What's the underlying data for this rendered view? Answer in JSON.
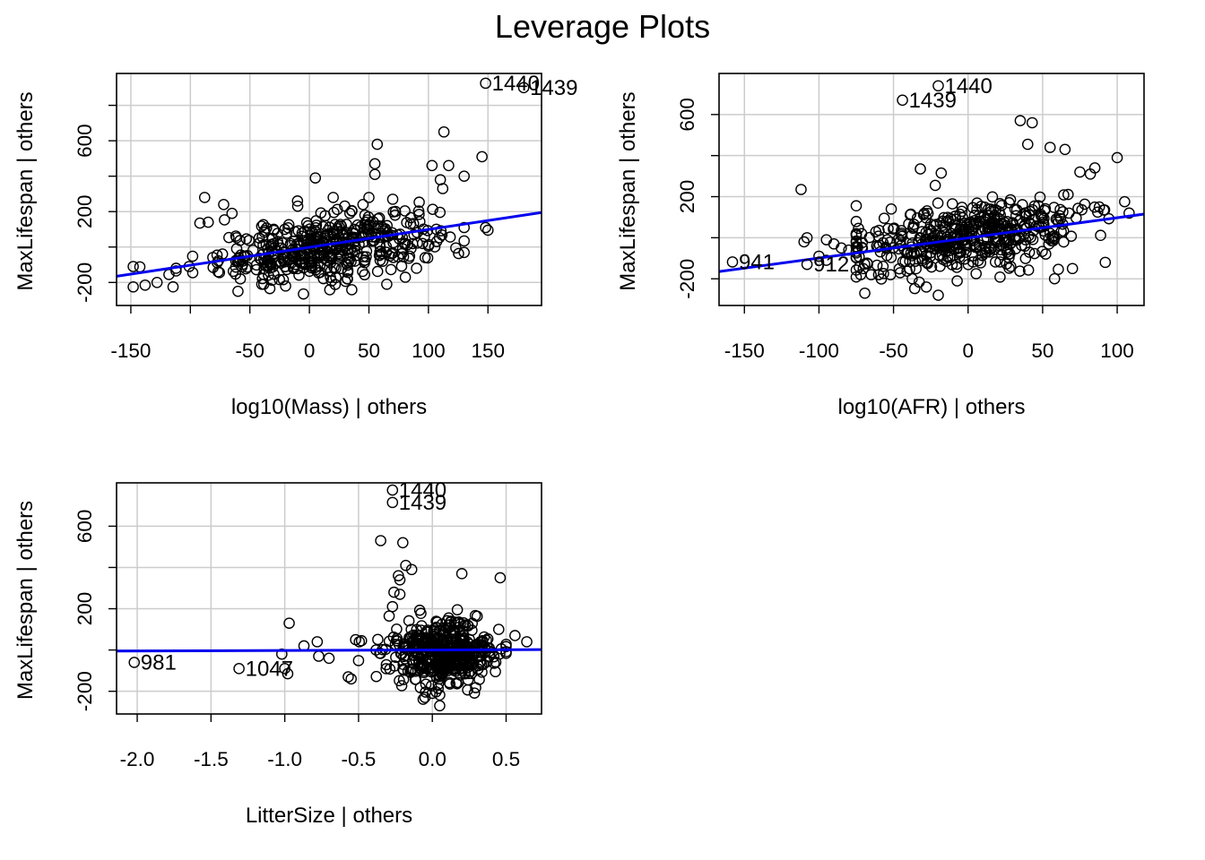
{
  "title": "Leverage Plots",
  "colors": {
    "points": "#000000",
    "fit_line": "#0000ee",
    "grid": "#cccccc"
  },
  "chart_data": [
    {
      "type": "scatter",
      "xlabel": "log10(Mass) | others",
      "ylabel": "MaxLifespan  | others",
      "xlim": [
        -162,
        195
      ],
      "ylim": [
        -330,
        980
      ],
      "xticks": [
        -150,
        -100,
        -50,
        0,
        50,
        100,
        150
      ],
      "xtick_labels": [
        "-150",
        "",
        "-50",
        "0",
        "50",
        "100",
        "150"
      ],
      "yticks": [
        -200,
        0,
        200,
        400,
        600,
        800
      ],
      "ytick_labels": [
        "-200",
        "",
        "200",
        "",
        "600",
        ""
      ],
      "grid": true,
      "fit_line": {
        "x": [
          -162,
          195
        ],
        "y": [
          -165,
          195
        ]
      },
      "labeled_points": [
        {
          "x": 180,
          "y": 900,
          "label": "1439"
        },
        {
          "x": 148,
          "y": 925,
          "label": "1440"
        }
      ],
      "cloud": {
        "xc": 15,
        "yc": 0,
        "sx": 45,
        "sy": 85,
        "n": 440,
        "xmin": -150,
        "xmax": 130,
        "ymin": -280,
        "ymax": 600
      },
      "extra_points": [
        [
          -148,
          -110
        ],
        [
          -148,
          -225
        ],
        [
          -138,
          -215
        ],
        [
          -128,
          -200
        ],
        [
          -118,
          -155
        ],
        [
          -112,
          -135
        ],
        [
          -112,
          -120
        ],
        [
          -101,
          -110
        ],
        [
          -98,
          -145
        ],
        [
          -92,
          135
        ],
        [
          -88,
          280
        ],
        [
          -85,
          140
        ],
        [
          -72,
          240
        ],
        [
          -65,
          190
        ],
        [
          -60,
          -250
        ],
        [
          -58,
          -180
        ],
        [
          -40,
          -210
        ],
        [
          -30,
          100
        ],
        [
          -10,
          260
        ],
        [
          5,
          390
        ],
        [
          20,
          280
        ],
        [
          45,
          240
        ],
        [
          50,
          280
        ],
        [
          55,
          410
        ],
        [
          55,
          470
        ],
        [
          57,
          580
        ],
        [
          65,
          -210
        ],
        [
          70,
          270
        ],
        [
          85,
          130
        ],
        [
          95,
          20
        ],
        [
          100,
          5
        ],
        [
          103,
          460
        ],
        [
          110,
          380
        ],
        [
          112,
          330
        ],
        [
          113,
          650
        ],
        [
          117,
          460
        ],
        [
          123,
          -5
        ],
        [
          130,
          400
        ],
        [
          145,
          510
        ],
        [
          148,
          110
        ],
        [
          150,
          95
        ],
        [
          -5,
          -265
        ],
        [
          -20,
          -220
        ],
        [
          32,
          -180
        ],
        [
          90,
          -120
        ]
      ]
    },
    {
      "type": "scatter",
      "xlabel": "log10(AFR) | others",
      "ylabel": "MaxLifespan  | others",
      "xlim": [
        -167,
        118
      ],
      "ylim": [
        -330,
        800
      ],
      "xticks": [
        -150,
        -100,
        -50,
        0,
        50,
        100
      ],
      "xtick_labels": [
        "-150",
        "-100",
        "-50",
        "0",
        "50",
        "100"
      ],
      "yticks": [
        -200,
        0,
        200,
        400,
        600
      ],
      "ytick_labels": [
        "-200",
        "",
        "200",
        "",
        "600"
      ],
      "grid": true,
      "fit_line": {
        "x": [
          -167,
          118
        ],
        "y": [
          -165,
          115
        ]
      },
      "labeled_points": [
        {
          "x": -158,
          "y": -118,
          "label": "941"
        },
        {
          "x": -108,
          "y": -130,
          "label": "912"
        },
        {
          "x": -20,
          "y": 740,
          "label": "1440"
        },
        {
          "x": -44,
          "y": 670,
          "label": "1439"
        }
      ],
      "cloud": {
        "xc": 0,
        "yc": 0,
        "sx": 38,
        "sy": 80,
        "n": 460,
        "xmin": -75,
        "xmax": 105,
        "ymin": -270,
        "ymax": 400
      },
      "extra_points": [
        [
          -112,
          235
        ],
        [
          -110,
          -20
        ],
        [
          -108,
          0
        ],
        [
          -100,
          -90
        ],
        [
          -95,
          -110
        ],
        [
          -95,
          -10
        ],
        [
          -90,
          -30
        ],
        [
          -85,
          -50
        ],
        [
          -80,
          -60
        ],
        [
          -75,
          20
        ],
        [
          -72,
          -180
        ],
        [
          -65,
          -180
        ],
        [
          -60,
          -180
        ],
        [
          -52,
          -180
        ],
        [
          -32,
          335
        ],
        [
          -22,
          255
        ],
        [
          -18,
          315
        ],
        [
          -20,
          -280
        ],
        [
          -28,
          -240
        ],
        [
          35,
          570
        ],
        [
          43,
          560
        ],
        [
          40,
          455
        ],
        [
          55,
          440
        ],
        [
          65,
          430
        ],
        [
          75,
          320
        ],
        [
          85,
          340
        ],
        [
          100,
          390
        ],
        [
          108,
          120
        ],
        [
          92,
          -120
        ],
        [
          58,
          -200
        ],
        [
          70,
          -150
        ],
        [
          82,
          310
        ]
      ]
    },
    {
      "type": "scatter",
      "xlabel": "LitterSize | others",
      "ylabel": "MaxLifespan  | others",
      "xlim": [
        -2.14,
        0.74
      ],
      "ylim": [
        -310,
        810
      ],
      "xticks": [
        -2.0,
        -1.5,
        -1.0,
        -0.5,
        0.0,
        0.5
      ],
      "xtick_labels": [
        "-2.0",
        "-1.5",
        "-1.0",
        "-0.5",
        "0.0",
        "0.5"
      ],
      "yticks": [
        -200,
        0,
        200,
        400,
        600
      ],
      "ytick_labels": [
        "-200",
        "",
        "200",
        "",
        "600"
      ],
      "grid": true,
      "fit_line": {
        "x": [
          -2.14,
          0.74
        ],
        "y": [
          -5,
          2
        ]
      },
      "labeled_points": [
        {
          "x": -2.02,
          "y": -60,
          "label": "981"
        },
        {
          "x": -1.31,
          "y": -90,
          "label": "1047"
        },
        {
          "x": -0.27,
          "y": 775,
          "label": "1440"
        },
        {
          "x": -0.27,
          "y": 715,
          "label": "1439"
        }
      ],
      "cloud": {
        "xc": 0.08,
        "yc": -20,
        "sx": 0.17,
        "sy": 80,
        "n": 480,
        "xmin": -0.5,
        "xmax": 0.5,
        "ymin": -270,
        "ymax": 240
      },
      "extra_points": [
        [
          -1.02,
          -20
        ],
        [
          -1.0,
          -90
        ],
        [
          -0.98,
          -115
        ],
        [
          -0.97,
          130
        ],
        [
          -0.87,
          20
        ],
        [
          -0.78,
          40
        ],
        [
          -0.77,
          -30
        ],
        [
          -0.7,
          -40
        ],
        [
          -0.57,
          -130
        ],
        [
          -0.55,
          -140
        ],
        [
          -0.52,
          50
        ],
        [
          -0.48,
          45
        ],
        [
          -0.35,
          530
        ],
        [
          -0.2,
          520
        ],
        [
          -0.18,
          410
        ],
        [
          -0.14,
          390
        ],
        [
          -0.23,
          360
        ],
        [
          -0.22,
          340
        ],
        [
          -0.26,
          280
        ],
        [
          -0.22,
          270
        ],
        [
          -0.27,
          210
        ],
        [
          0.2,
          370
        ],
        [
          0.46,
          350
        ],
        [
          0.56,
          70
        ],
        [
          0.64,
          40
        ],
        [
          0.45,
          100
        ],
        [
          -0.05,
          -230
        ],
        [
          0.05,
          -270
        ],
        [
          0.0,
          -210
        ]
      ]
    }
  ]
}
